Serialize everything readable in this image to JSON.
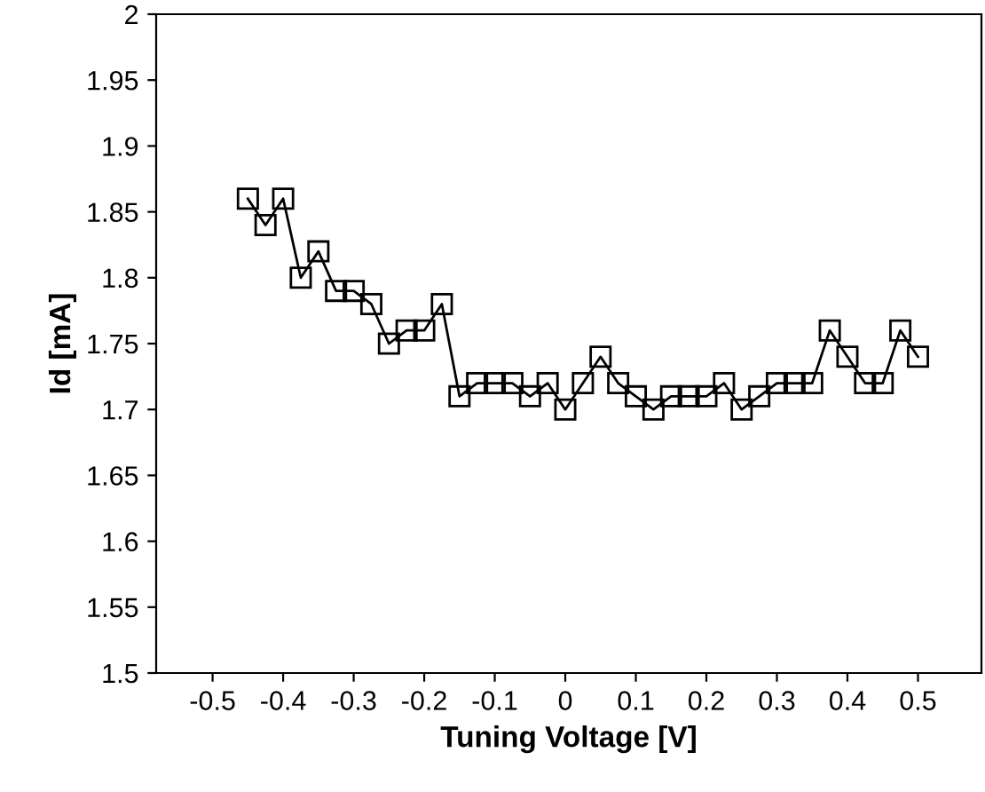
{
  "chart_data": {
    "type": "line",
    "xlabel": "Tuning Voltage [V]",
    "ylabel": "Id [mA]",
    "x": [
      -0.45,
      -0.425,
      -0.4,
      -0.375,
      -0.35,
      -0.325,
      -0.3,
      -0.275,
      -0.25,
      -0.225,
      -0.2,
      -0.175,
      -0.15,
      -0.125,
      -0.1,
      -0.075,
      -0.05,
      -0.025,
      0,
      0.025,
      0.05,
      0.075,
      0.1,
      0.125,
      0.15,
      0.175,
      0.2,
      0.225,
      0.25,
      0.275,
      0.3,
      0.325,
      0.35,
      0.375,
      0.4,
      0.425,
      0.45,
      0.475,
      0.5
    ],
    "series": [
      {
        "color": "#000000",
        "values": [
          1.86,
          1.84,
          1.86,
          1.8,
          1.82,
          1.79,
          1.79,
          1.78,
          1.75,
          1.76,
          1.76,
          1.78,
          1.71,
          1.72,
          1.72,
          1.72,
          1.71,
          1.72,
          1.7,
          1.72,
          1.74,
          1.72,
          1.71,
          1.7,
          1.71,
          1.71,
          1.71,
          1.72,
          1.7,
          1.71,
          1.72,
          1.72,
          1.72,
          1.76,
          1.74,
          1.72,
          1.72,
          1.76,
          1.74
        ]
      }
    ],
    "xlim": [
      -0.58,
      0.59
    ],
    "ylim": [
      1.5,
      2
    ],
    "xticks": [
      -0.5,
      -0.4,
      -0.3,
      -0.2,
      -0.1,
      0,
      0.1,
      0.2,
      0.3,
      0.4,
      0.5
    ],
    "yticks": [
      1.5,
      1.55,
      1.6,
      1.65,
      1.7,
      1.75,
      1.8,
      1.85,
      1.9,
      1.95,
      2
    ],
    "marker": "square",
    "line_style": "solid",
    "grid": false,
    "legend": false
  }
}
